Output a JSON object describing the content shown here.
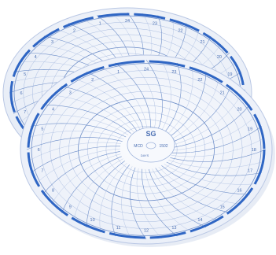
{
  "image": {
    "subject": "circular-chart-recorder-paper",
    "count": 2,
    "colors": {
      "background": "#ffffff",
      "paper": "#f2f5fb",
      "grid_line": "#9fb4dc",
      "grid_line_strong": "#6f8fc9",
      "rim_band": "#2f66c4",
      "text": "#4a6fb3"
    }
  },
  "back_chart": {
    "center_label": "",
    "hour_labels": [
      "24",
      "23",
      "22",
      "21",
      "20",
      "19",
      "18",
      "17",
      "16",
      "15",
      "14",
      "13",
      "12",
      "11",
      "10",
      "9",
      "8",
      "7",
      "6",
      "5",
      "4",
      "3",
      "2",
      "1"
    ]
  },
  "front_chart": {
    "center_logo": "SG",
    "center_text_left": "MCD",
    "center_text_right": "1502",
    "center_text_bottom": "DAYS",
    "hour_labels": [
      "24",
      "23",
      "22",
      "21",
      "20",
      "19",
      "18",
      "17",
      "16",
      "15",
      "14",
      "13",
      "12",
      "11",
      "10",
      "9",
      "8",
      "7",
      "6",
      "5",
      "4",
      "3",
      "2",
      "1"
    ]
  }
}
